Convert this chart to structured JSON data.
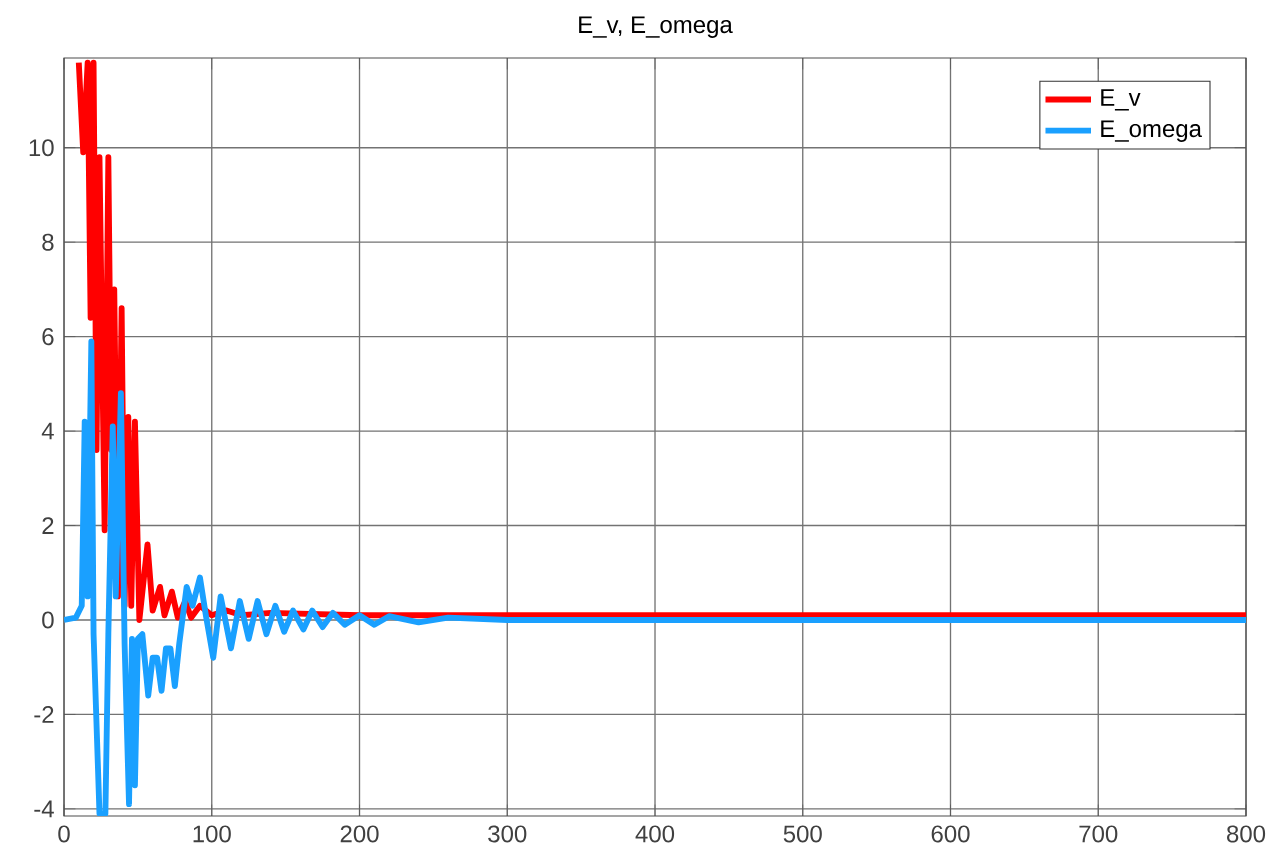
{
  "chart_data": {
    "type": "line",
    "title": "E_v, E_omega",
    "xlim": [
      0,
      800
    ],
    "ylim": [
      -4.15,
      11.9
    ],
    "xticks": [
      0,
      100,
      200,
      300,
      400,
      500,
      600,
      700,
      800
    ],
    "yticks": [
      -4,
      -2,
      0,
      2,
      4,
      6,
      8,
      10
    ],
    "grid": true,
    "legend": "top right",
    "series": [
      {
        "name": "E_v",
        "color": "#ff0000",
        "x": [
          10,
          13,
          16,
          18,
          20,
          22,
          24,
          27.5,
          30,
          32,
          34,
          36.5,
          39,
          41,
          43.5,
          45.5,
          48,
          51,
          56.5,
          60,
          65,
          68,
          73,
          77,
          82,
          86,
          92,
          100,
          110,
          120,
          140,
          200,
          300,
          800
        ],
        "values": [
          11.8,
          9.9,
          11.8,
          6.4,
          11.8,
          3.6,
          9.8,
          1.9,
          9.8,
          3.6,
          7.0,
          0.5,
          6.6,
          0.3,
          4.3,
          0.3,
          4.2,
          0.0,
          1.6,
          0.2,
          0.7,
          0.1,
          0.6,
          0.05,
          0.4,
          0.05,
          0.3,
          0.1,
          0.2,
          0.1,
          0.15,
          0.1,
          0.1,
          0.1
        ]
      },
      {
        "name": "E_omega",
        "color": "#1aa0ff",
        "x": [
          0,
          8,
          12,
          14,
          16,
          18.5,
          20,
          24,
          28,
          30,
          33,
          35,
          38.5,
          41,
          44,
          46,
          48,
          50,
          53,
          57,
          60,
          63,
          66,
          69,
          72,
          75,
          78,
          83,
          87,
          92,
          96,
          101,
          106,
          113,
          119,
          125,
          131,
          137,
          143,
          149,
          155,
          162,
          168,
          175,
          182,
          190,
          200,
          210,
          220,
          240,
          260,
          300,
          800
        ],
        "values": [
          0,
          0.05,
          0.3,
          4.2,
          0.5,
          5.9,
          -0.3,
          -4.1,
          -4.1,
          -0.3,
          4.1,
          0.5,
          4.8,
          -0.5,
          -3.9,
          -0.4,
          -3.5,
          -0.4,
          -0.3,
          -1.6,
          -0.8,
          -0.8,
          -1.5,
          -0.6,
          -0.6,
          -1.4,
          -0.5,
          0.7,
          0.3,
          0.9,
          0.1,
          -0.8,
          0.5,
          -0.6,
          0.4,
          -0.4,
          0.4,
          -0.3,
          0.3,
          -0.25,
          0.2,
          -0.2,
          0.2,
          -0.15,
          0.15,
          -0.1,
          0.1,
          -0.1,
          0.08,
          -0.05,
          0.05,
          0,
          0
        ]
      }
    ]
  }
}
